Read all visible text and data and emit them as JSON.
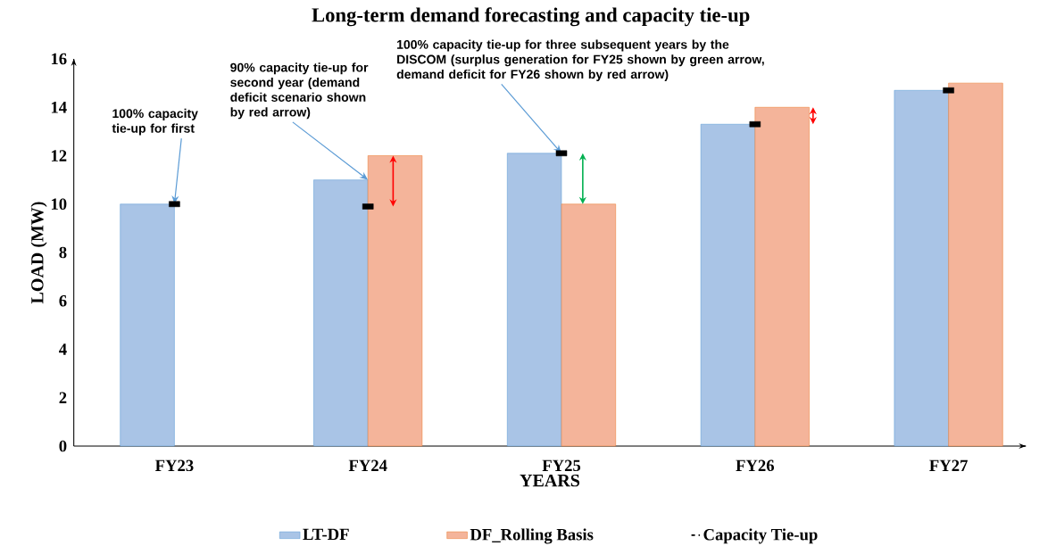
{
  "chart_data": {
    "type": "bar",
    "title": "Long-term demand forecasting and capacity tie-up",
    "xlabel": "YEARS",
    "ylabel": "LOAD  (MW)",
    "categories": [
      "FY23",
      "FY24",
      "FY25",
      "FY26",
      "FY27"
    ],
    "series": [
      {
        "name": "LT-DF",
        "color": "#a9c4e6",
        "values": [
          10,
          11,
          12.1,
          13.3,
          14.7
        ]
      },
      {
        "name": "DF_Rolling Basis",
        "color": "#f4b49a",
        "values": [
          null,
          12,
          10,
          14,
          15
        ]
      },
      {
        "name": "Capacity Tie-up",
        "type": "scatter",
        "color": "#000000",
        "line_style": "dashed",
        "marker": "square",
        "values": [
          10,
          9.9,
          12.1,
          13.3,
          14.7
        ]
      }
    ],
    "ylim": [
      0,
      16
    ],
    "yticks": [
      0,
      2,
      4,
      6,
      8,
      10,
      12,
      14,
      16
    ],
    "grid": false,
    "legend": "bottom",
    "annotations": [
      {
        "text": "100% capacity tie-up for first",
        "x": "FY23",
        "y": 10
      },
      {
        "text": "90% capacity tie-up for second year (demand deficit scenario shown by red arrow)",
        "x": "FY24",
        "y": 11
      },
      {
        "text": "100% capacity tie-up for three subsequent years by the DISCOM (surplus generation for FY25 shown by green arrow, demand deficit for FY26 shown by red arrow)",
        "x": "FY25",
        "y": 12.1
      }
    ]
  }
}
